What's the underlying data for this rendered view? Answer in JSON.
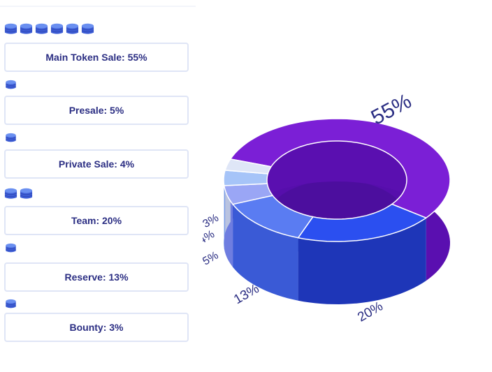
{
  "rows": [
    {
      "label": "Main Token Sale: 55%",
      "coins": 6
    },
    {
      "label": "Presale: 5%",
      "coins": 1
    },
    {
      "label": "Private Sale: 4%",
      "coins": 1
    },
    {
      "label": "Team: 20%",
      "coins": 2
    },
    {
      "label": "Reserve: 13%",
      "coins": 1
    },
    {
      "label": "Bounty: 3%",
      "coins": 1
    }
  ],
  "coin_style": {
    "top": "#6a8ff0",
    "side": "#3f5fd6",
    "stripe": "#2d47b8"
  },
  "chart_data": {
    "type": "pie",
    "title": "",
    "slices": [
      {
        "name": "Main Token Sale",
        "value": 55,
        "label": "55%",
        "top_color": "#7b1fd6",
        "side_color": "#5a0fb0"
      },
      {
        "name": "Team",
        "value": 20,
        "label": "20%",
        "top_color": "#2b4ff0",
        "side_color": "#1e36b8"
      },
      {
        "name": "Reserve",
        "value": 13,
        "label": "13%",
        "top_color": "#5a7cf2",
        "side_color": "#3a5ad6"
      },
      {
        "name": "Presale",
        "value": 5,
        "label": "5%",
        "top_color": "#9aa6f5",
        "side_color": "#6e7de0"
      },
      {
        "name": "Private Sale",
        "value": 4,
        "label": "4%",
        "top_color": "#a6c4f8",
        "side_color": "#7aa0e6"
      },
      {
        "name": "Bounty",
        "value": 3,
        "label": "3%",
        "top_color": "#dfe6f7",
        "side_color": "#b9c3e0"
      }
    ],
    "inner_color": "#4c0e9e"
  }
}
